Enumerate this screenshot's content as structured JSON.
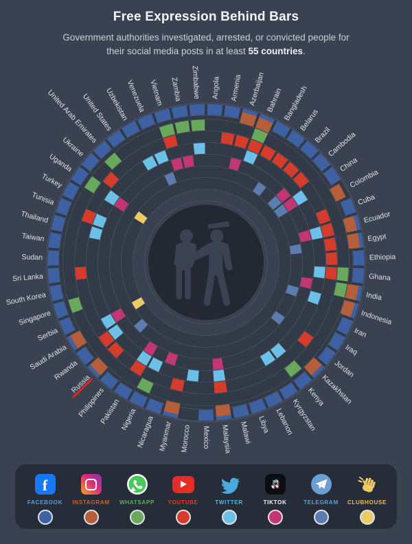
{
  "page": {
    "title": "Free Expression Behind Bars",
    "subtitle_prefix": "Government authorities investigated, arrested, or convicted people for their social media posts in at least ",
    "subtitle_bold": "55 countries",
    "subtitle_suffix": "."
  },
  "chart_data": {
    "type": "radial-heatmap",
    "description": "Concentric rings = social media platforms (outermost to innermost); the 55 sectors = countries; a filled cell means people were investigated, arrested, or convicted for posts on that platform in that country.",
    "center_graphic": "arrest-silhouette-icon",
    "rings_outer_to_inner": [
      "facebook",
      "instagram",
      "whatsapp",
      "youtube",
      "twitter",
      "tiktok",
      "telegram",
      "clubhouse"
    ],
    "highlight_country": "Russia",
    "highlight_color": "#cf2b26",
    "platforms": {
      "facebook": {
        "legend_label": "FACEBOOK",
        "color": "#3e61a4",
        "label_color": "#5b9bd5"
      },
      "instagram": {
        "legend_label": "INSTAGRAM",
        "color": "#b45f39",
        "label_color": "#c4602f"
      },
      "whatsapp": {
        "legend_label": "WHATSAPP",
        "color": "#69a95c",
        "label_color": "#57b060"
      },
      "youtube": {
        "legend_label": "YOUTUBE",
        "color": "#d53c2c",
        "label_color": "#e03c2c"
      },
      "twitter": {
        "legend_label": "TWITTER",
        "color": "#6cc0e8",
        "label_color": "#55b5e6"
      },
      "tiktok": {
        "legend_label": "TIKTOK",
        "color": "#c23672",
        "label_color": "#f2f3f5"
      },
      "telegram": {
        "legend_label": "TELEGRAM",
        "color": "#5c7cb0",
        "label_color": "#5e9ed0"
      },
      "clubhouse": {
        "legend_label": "CLUBHOUSE",
        "color": "#eccb64",
        "label_color": "#e5c05a"
      }
    },
    "countries": [
      {
        "name": "Angola",
        "platforms": [
          "facebook"
        ]
      },
      {
        "name": "Armenia",
        "platforms": [
          "facebook",
          "youtube"
        ]
      },
      {
        "name": "Azerbaijan",
        "platforms": [
          "facebook",
          "instagram",
          "youtube",
          "tiktok"
        ]
      },
      {
        "name": "Bahrain",
        "platforms": [
          "facebook",
          "instagram",
          "whatsapp",
          "youtube",
          "twitter"
        ]
      },
      {
        "name": "Bangladesh",
        "platforms": [
          "facebook",
          "youtube"
        ]
      },
      {
        "name": "Belarus",
        "platforms": [
          "facebook",
          "youtube",
          "telegram"
        ]
      },
      {
        "name": "Brazil",
        "platforms": [
          "facebook",
          "youtube"
        ]
      },
      {
        "name": "Cambodia",
        "platforms": [
          "facebook",
          "youtube",
          "tiktok",
          "telegram"
        ]
      },
      {
        "name": "China",
        "platforms": [
          "facebook",
          "twitter",
          "tiktok",
          "telegram"
        ]
      },
      {
        "name": "Colombia",
        "platforms": [
          "instagram"
        ]
      },
      {
        "name": "Cuba",
        "platforms": [
          "facebook",
          "youtube"
        ]
      },
      {
        "name": "Ecuador",
        "platforms": [
          "facebook",
          "instagram",
          "youtube",
          "twitter",
          "tiktok"
        ]
      },
      {
        "name": "Egypt",
        "platforms": [
          "facebook",
          "instagram",
          "youtube",
          "telegram"
        ]
      },
      {
        "name": "Ethiopia",
        "platforms": [
          "facebook",
          "youtube"
        ]
      },
      {
        "name": "Ghana",
        "platforms": [
          "facebook",
          "whatsapp",
          "youtube",
          "twitter"
        ]
      },
      {
        "name": "India",
        "platforms": [
          "facebook",
          "instagram",
          "whatsapp",
          "tiktok"
        ]
      },
      {
        "name": "Indonesia",
        "platforms": [
          "facebook",
          "instagram",
          "twitter",
          "telegram"
        ]
      },
      {
        "name": "Iran",
        "platforms": [
          "facebook"
        ]
      },
      {
        "name": "Iraq",
        "platforms": [
          "facebook"
        ]
      },
      {
        "name": "Jordan",
        "platforms": [
          "facebook",
          "youtube",
          "telegram"
        ]
      },
      {
        "name": "Kazakhstan",
        "platforms": [
          "facebook",
          "instagram"
        ]
      },
      {
        "name": "Kenya",
        "platforms": [
          "facebook",
          "whatsapp",
          "twitter"
        ]
      },
      {
        "name": "Kyrgyzstan",
        "platforms": [
          "facebook",
          "twitter"
        ]
      },
      {
        "name": "Lebanon",
        "platforms": [
          "facebook"
        ]
      },
      {
        "name": "Libya",
        "platforms": [
          "facebook"
        ]
      },
      {
        "name": "Malawi",
        "platforms": [
          "facebook"
        ]
      },
      {
        "name": "Malaysia",
        "platforms": [
          "facebook",
          "instagram",
          "youtube",
          "twitter",
          "tiktok"
        ]
      },
      {
        "name": "Mexico",
        "platforms": [
          "facebook"
        ]
      },
      {
        "name": "Morocco",
        "platforms": [
          "twitter"
        ]
      },
      {
        "name": "Myanmar",
        "platforms": [
          "facebook",
          "instagram",
          "youtube"
        ]
      },
      {
        "name": "Nicaragua",
        "platforms": [
          "facebook",
          "tiktok"
        ]
      },
      {
        "name": "Nigeria",
        "platforms": [
          "facebook",
          "whatsapp",
          "twitter"
        ]
      },
      {
        "name": "Pakistan",
        "platforms": [
          "facebook",
          "youtube",
          "twitter",
          "tiktok"
        ]
      },
      {
        "name": "Philippines",
        "platforms": [
          "facebook"
        ]
      },
      {
        "name": "Russia",
        "platforms": [
          "facebook",
          "instagram",
          "youtube",
          "telegram"
        ]
      },
      {
        "name": "Rwanda",
        "platforms": [
          "facebook",
          "youtube",
          "twitter"
        ]
      },
      {
        "name": "Saudi Arabia",
        "platforms": [
          "facebook",
          "instagram",
          "twitter",
          "tiktok",
          "clubhouse"
        ]
      },
      {
        "name": "Serbia",
        "platforms": [
          "facebook"
        ]
      },
      {
        "name": "Singapore",
        "platforms": [
          "facebook",
          "whatsapp"
        ]
      },
      {
        "name": "South Korea",
        "platforms": [
          "facebook"
        ]
      },
      {
        "name": "Sri Lanka",
        "platforms": [
          "facebook",
          "youtube"
        ]
      },
      {
        "name": "Sudan",
        "platforms": [
          "facebook"
        ]
      },
      {
        "name": "Taiwan",
        "platforms": [
          "facebook"
        ]
      },
      {
        "name": "Thailand",
        "platforms": [
          "facebook",
          "twitter"
        ]
      },
      {
        "name": "Tunisia",
        "platforms": [
          "facebook",
          "youtube",
          "twitter"
        ]
      },
      {
        "name": "Turkey",
        "platforms": [
          "facebook"
        ]
      },
      {
        "name": "Uganda",
        "platforms": [
          "facebook",
          "whatsapp",
          "twitter",
          "tiktok",
          "clubhouse"
        ]
      },
      {
        "name": "Ukraine",
        "platforms": [
          "facebook",
          "youtube"
        ]
      },
      {
        "name": "United Arab Emirates",
        "platforms": [
          "facebook",
          "whatsapp"
        ]
      },
      {
        "name": "United States",
        "platforms": [
          "facebook"
        ]
      },
      {
        "name": "Uzbekistan",
        "platforms": [
          "facebook",
          "twitter"
        ]
      },
      {
        "name": "Venezuela",
        "platforms": [
          "facebook",
          "twitter",
          "telegram"
        ]
      },
      {
        "name": "Vietnam",
        "platforms": [
          "facebook",
          "whatsapp",
          "youtube",
          "tiktok"
        ]
      },
      {
        "name": "Zambia",
        "platforms": [
          "facebook",
          "whatsapp",
          "tiktok"
        ]
      },
      {
        "name": "Zimbabwe",
        "platforms": [
          "facebook",
          "whatsapp",
          "twitter"
        ]
      }
    ]
  }
}
